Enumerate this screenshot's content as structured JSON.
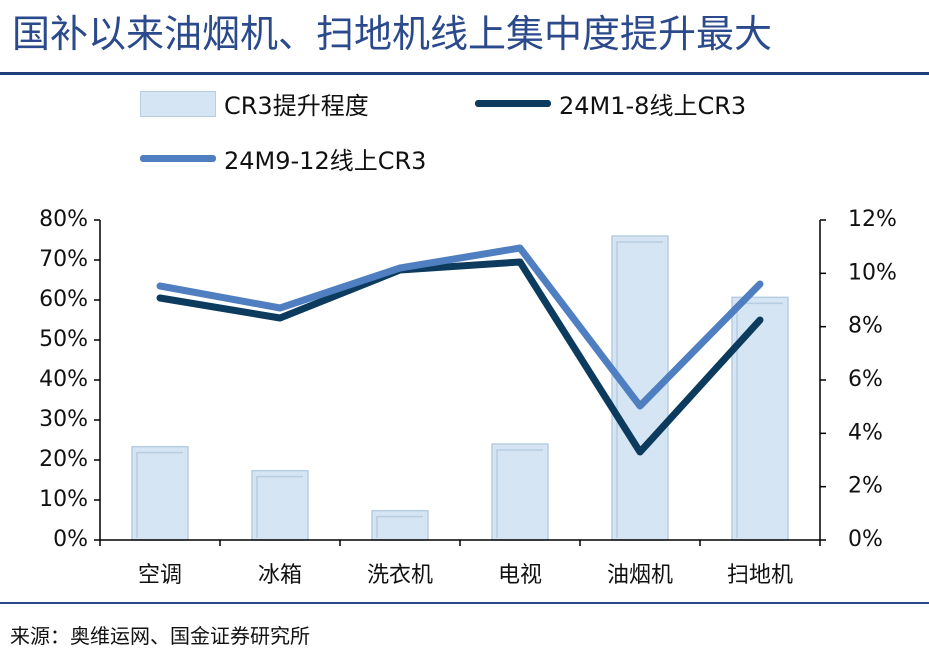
{
  "title": "国补以来油烟机、扫地机线上集中度提升最大",
  "source": "来源：奥维运网、国金证券研究所",
  "legend": {
    "bar_label": "CR3提升程度",
    "line1_label": "24M1-8线上CR3",
    "line2_label": "24M9-12线上CR3"
  },
  "colors": {
    "title": "#2b4a8c",
    "bar_fill": "#d5e5f3",
    "bar_stroke": "#b7cde2",
    "line1": "#0c3b5e",
    "line2": "#4f7fc0",
    "axis": "#000000"
  },
  "chart_data": {
    "type": "bar",
    "categories": [
      "空调",
      "冰箱",
      "洗衣机",
      "电视",
      "油烟机",
      "扫地机"
    ],
    "left_axis": {
      "ylim": [
        0,
        80
      ],
      "ticks": [
        "0%",
        "10%",
        "20%",
        "30%",
        "40%",
        "50%",
        "60%",
        "70%",
        "80%"
      ]
    },
    "right_axis": {
      "ylim": [
        0,
        12
      ],
      "ticks": [
        "0%",
        "2%",
        "4%",
        "6%",
        "8%",
        "10%",
        "12%"
      ]
    },
    "series": [
      {
        "name": "CR3提升程度",
        "type": "bar",
        "axis": "right",
        "unit": "%",
        "values": [
          3.5,
          2.6,
          1.1,
          3.6,
          11.4,
          9.1
        ]
      },
      {
        "name": "24M1-8线上CR3",
        "type": "line",
        "axis": "left",
        "unit": "%",
        "values": [
          60.5,
          55.5,
          67.5,
          69.5,
          22,
          55
        ]
      },
      {
        "name": "24M9-12线上CR3",
        "type": "line",
        "axis": "left",
        "unit": "%",
        "values": [
          63.5,
          58,
          68,
          73,
          33.5,
          64
        ]
      }
    ],
    "grid": false,
    "legend_position": "top"
  }
}
